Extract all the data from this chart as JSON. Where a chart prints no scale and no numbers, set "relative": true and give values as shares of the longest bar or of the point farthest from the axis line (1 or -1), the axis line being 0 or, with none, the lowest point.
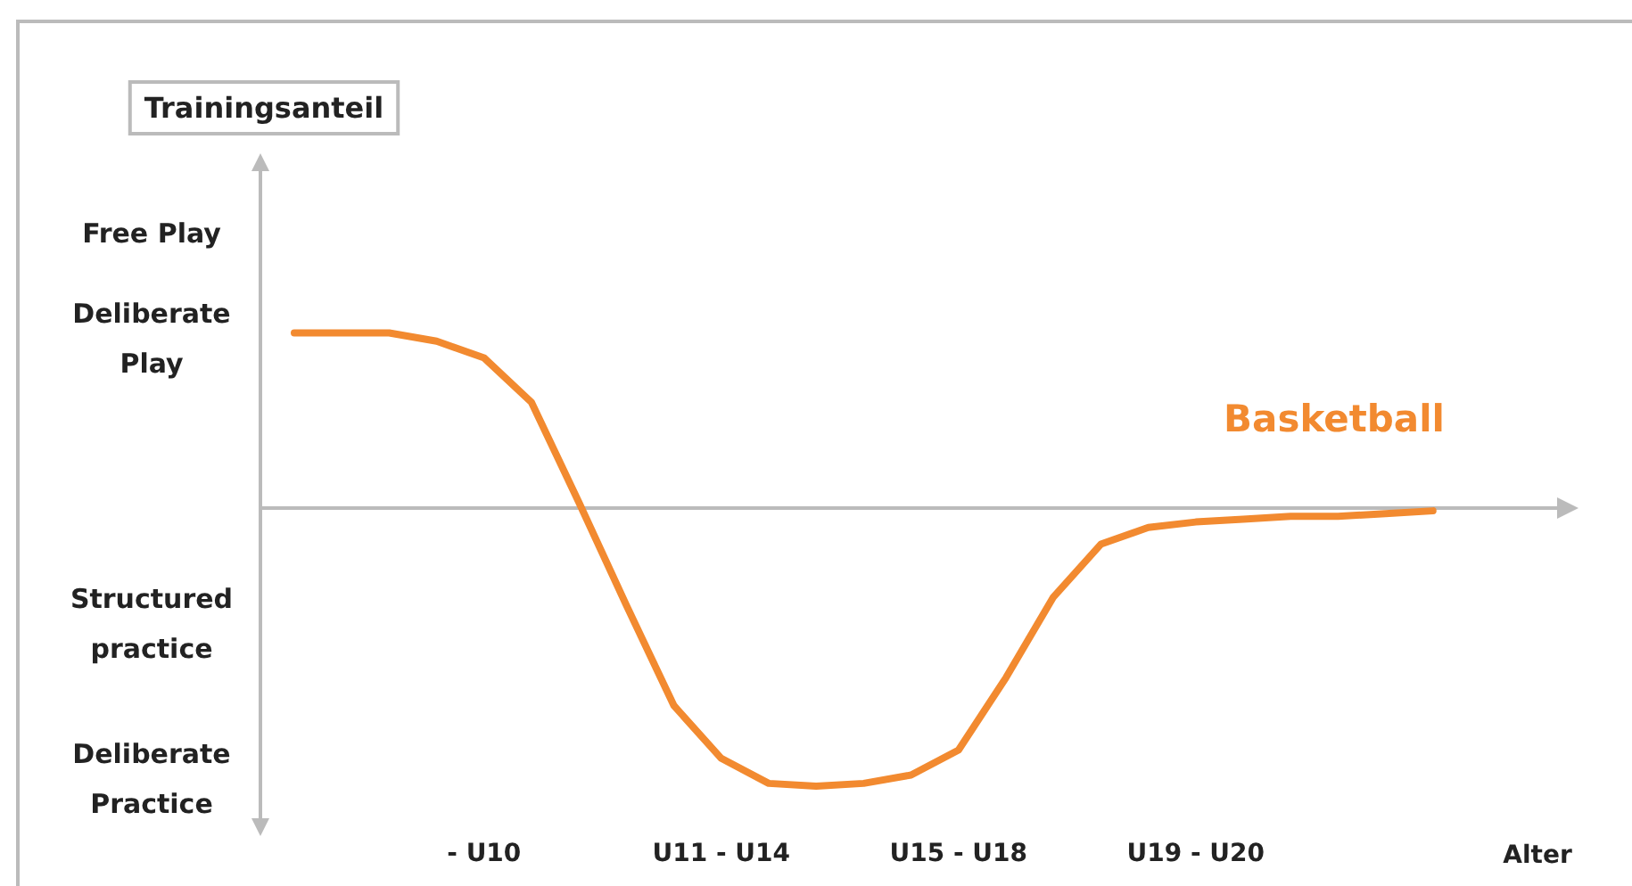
{
  "chart_data": {
    "type": "line",
    "title": "Trainingsanteil",
    "xlabel": "Alter",
    "relative": true,
    "categories": [
      null,
      null,
      null,
      null,
      "- U10",
      null,
      null,
      null,
      null,
      "U11 - U14",
      null,
      null,
      null,
      null,
      "U15 - U18",
      null,
      null,
      null,
      null,
      "U19 - U20",
      null,
      null,
      null,
      null,
      null
    ],
    "annotations": [
      "Free Play",
      "Deliberate Play",
      "Structured practice",
      "Deliberate Practice"
    ],
    "series": [
      {
        "name": "Basketball",
        "color": "#f28a30",
        "values": [
          0.63,
          0.63,
          0.63,
          0.6,
          0.54,
          0.38,
          0.02,
          -0.35,
          -0.71,
          -0.9,
          -0.99,
          -1,
          -0.99,
          -0.96,
          -0.87,
          -0.61,
          -0.32,
          -0.13,
          -0.07,
          -0.05,
          -0.04,
          -0.03,
          -0.03,
          -0.02,
          -0.01
        ]
      }
    ],
    "legend": false,
    "marker": "none",
    "line_style": "solid"
  }
}
